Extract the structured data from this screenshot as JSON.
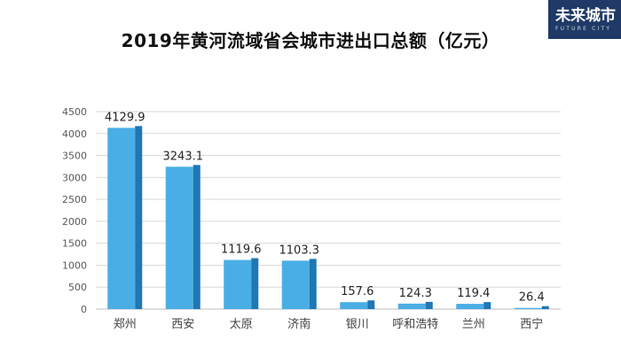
{
  "logo": {
    "text": "未来城市",
    "sub": "FUTURE CITY"
  },
  "chart_data": {
    "type": "bar",
    "title": "2019年黄河流域省会城市进出口总额（亿元）",
    "categories": [
      "郑州",
      "西安",
      "太原",
      "济南",
      "银川",
      "呼和浩特",
      "兰州",
      "西宁"
    ],
    "values": [
      4129.9,
      3243.1,
      1119.6,
      1103.3,
      157.6,
      124.3,
      119.4,
      26.4
    ],
    "data_labels": [
      "4129.9",
      "3243.1",
      "1119.6",
      "1103.3",
      "157.6",
      "124.3",
      "119.4",
      "26.4"
    ],
    "ylim": [
      0,
      4500
    ],
    "yticks": [
      0,
      500,
      1000,
      1500,
      2000,
      2500,
      3000,
      3500,
      4000,
      4500
    ],
    "grid": true,
    "colors": {
      "bar_front": "#4aaee6",
      "bar_side": "#1f77b4",
      "grid": "#d9d9d9",
      "axis": "#bfbfbf"
    }
  }
}
